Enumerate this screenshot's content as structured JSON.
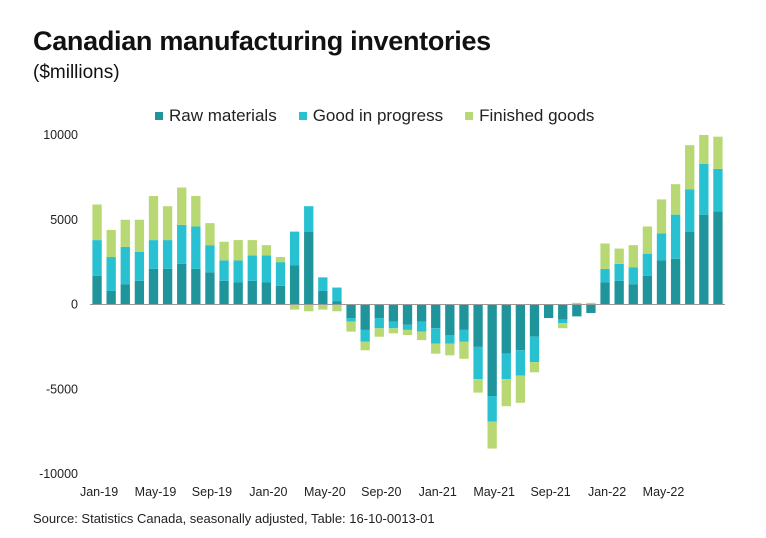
{
  "title": "Canadian manufacturing inventories",
  "subtitle": "($millions)",
  "source": "Source: Statistics Canada, seasonally adjusted, Table: 16-10-0013-01",
  "colors": {
    "raw": "#1f959b",
    "progress": "#27c1d1",
    "finished": "#b8d873",
    "zero_line": "#999999"
  },
  "chart_data": {
    "type": "bar",
    "stacked": true,
    "title": "Canadian manufacturing inventories",
    "ylabel": "($millions)",
    "ylim": [
      -10000,
      10000
    ],
    "yticks": [
      10000,
      5000,
      0,
      -5000,
      -10000
    ],
    "ytick_labels": [
      "10000",
      "5000",
      "0",
      "-5000",
      "-10000"
    ],
    "grid": false,
    "legend_position": "top",
    "categories": [
      "Jan-19",
      "Feb-19",
      "Mar-19",
      "Apr-19",
      "May-19",
      "Jun-19",
      "Jul-19",
      "Aug-19",
      "Sep-19",
      "Oct-19",
      "Nov-19",
      "Dec-19",
      "Jan-20",
      "Feb-20",
      "Mar-20",
      "Apr-20",
      "May-20",
      "Jun-20",
      "Jul-20",
      "Aug-20",
      "Sep-20",
      "Oct-20",
      "Nov-20",
      "Dec-20",
      "Jan-21",
      "Feb-21",
      "Mar-21",
      "Apr-21",
      "May-21",
      "Jun-21",
      "Jul-21",
      "Aug-21",
      "Sep-21",
      "Oct-21",
      "Nov-21",
      "Dec-21",
      "Jan-22",
      "Feb-22",
      "Mar-22",
      "Apr-22",
      "May-22",
      "Jun-22",
      "Jul-22",
      "Aug-22",
      "Sep-22"
    ],
    "xtick_labels": [
      "Jan-19",
      "May-19",
      "Sep-19",
      "Jan-20",
      "May-20",
      "Sep-20",
      "Jan-21",
      "May-21",
      "Sep-21",
      "Jan-22",
      "May-22"
    ],
    "series": [
      {
        "name": "Raw materials",
        "values": [
          1700,
          800,
          1200,
          1400,
          2100,
          2100,
          2400,
          2100,
          1900,
          1400,
          1300,
          1400,
          1300,
          1100,
          2300,
          4300,
          800,
          200,
          -800,
          -1500,
          -800,
          -1000,
          -1200,
          -1000,
          -1400,
          -1800,
          -1500,
          -2500,
          -5400,
          -2900,
          -2700,
          -1900,
          -800,
          -900,
          -700,
          -500,
          1300,
          1400,
          1200,
          1700,
          2600,
          2700,
          4300,
          5300,
          5500
        ]
      },
      {
        "name": "Good in progress",
        "values": [
          2100,
          2000,
          2200,
          1700,
          1700,
          1700,
          2300,
          2500,
          1600,
          1200,
          1300,
          1500,
          1600,
          1400,
          2000,
          1500,
          800,
          800,
          -200,
          -700,
          -600,
          -400,
          -300,
          -600,
          -900,
          -500,
          -700,
          -1900,
          -1500,
          -1500,
          -1500,
          -1500,
          0,
          -200,
          0,
          0,
          800,
          1000,
          1000,
          1300,
          1600,
          2600,
          2500,
          3000,
          2500
        ]
      },
      {
        "name": "Finished goods",
        "values": [
          2100,
          1600,
          1600,
          1900,
          2600,
          2000,
          2200,
          1800,
          1300,
          1100,
          1200,
          900,
          600,
          300,
          -300,
          -400,
          -300,
          -400,
          -600,
          -500,
          -500,
          -300,
          -300,
          -500,
          -600,
          -700,
          -1000,
          -800,
          -1600,
          -1600,
          -1600,
          -600,
          0,
          -300,
          100,
          100,
          1500,
          900,
          1300,
          1600,
          2000,
          1800,
          2600,
          1700,
          1900
        ]
      }
    ]
  }
}
